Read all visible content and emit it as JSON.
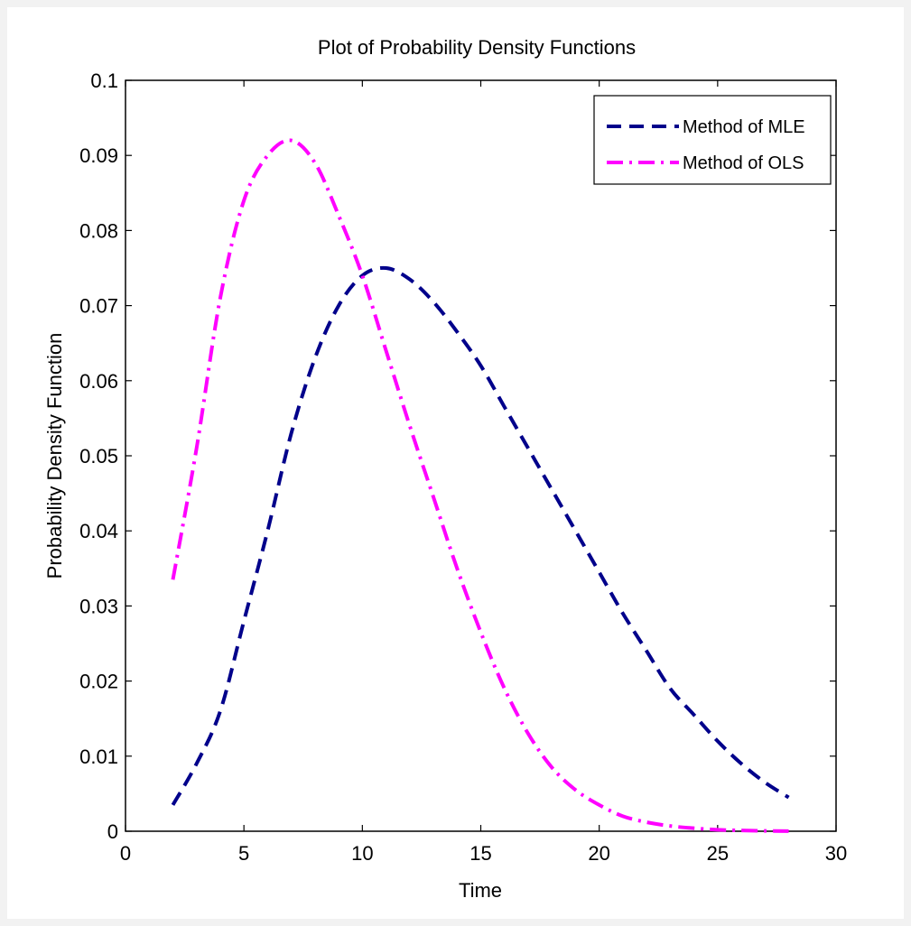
{
  "chart_data": {
    "type": "line",
    "title": "Plot of Probability Density Functions",
    "xlabel": "Time",
    "ylabel": "Probability Density Function",
    "xlim": [
      0,
      30
    ],
    "ylim": [
      0,
      0.1
    ],
    "xticks": [
      0,
      5,
      10,
      15,
      20,
      25,
      30
    ],
    "xtick_labels": [
      "0",
      "5",
      "10",
      "15",
      "20",
      "25",
      "30"
    ],
    "yticks": [
      0,
      0.01,
      0.02,
      0.03,
      0.04,
      0.05,
      0.06,
      0.07,
      0.08,
      0.09,
      0.1
    ],
    "ytick_labels": [
      "0",
      "0.01",
      "0.02",
      "0.03",
      "0.04",
      "0.05",
      "0.06",
      "0.07",
      "0.08",
      "0.09",
      "0.1"
    ],
    "grid": false,
    "legend_position": "top-right",
    "x": [
      2,
      3,
      4,
      5,
      6,
      7,
      8,
      9,
      10,
      11,
      12,
      13,
      14,
      15,
      16,
      17,
      18,
      19,
      20,
      21,
      22,
      23,
      24,
      25,
      26,
      27,
      28
    ],
    "series": [
      {
        "name": "Method of MLE",
        "color": "#00008b",
        "dash": "dashed",
        "values": [
          0.0035,
          0.009,
          0.016,
          0.028,
          0.04,
          0.053,
          0.063,
          0.07,
          0.074,
          0.075,
          0.0735,
          0.0705,
          0.0665,
          0.062,
          0.0565,
          0.051,
          0.0455,
          0.04,
          0.0345,
          0.029,
          0.024,
          0.019,
          0.0155,
          0.012,
          0.009,
          0.0065,
          0.0045
        ]
      },
      {
        "name": "Method of OLS",
        "color": "#ff00ff",
        "dash": "dash-dot",
        "values": [
          0.0335,
          0.051,
          0.071,
          0.084,
          0.09,
          0.092,
          0.089,
          0.082,
          0.074,
          0.064,
          0.054,
          0.0445,
          0.035,
          0.0265,
          0.019,
          0.013,
          0.0085,
          0.0055,
          0.0035,
          0.002,
          0.0012,
          0.0007,
          0.0004,
          0.0002,
          0.0001,
          5e-05,
          2e-05
        ]
      }
    ]
  }
}
